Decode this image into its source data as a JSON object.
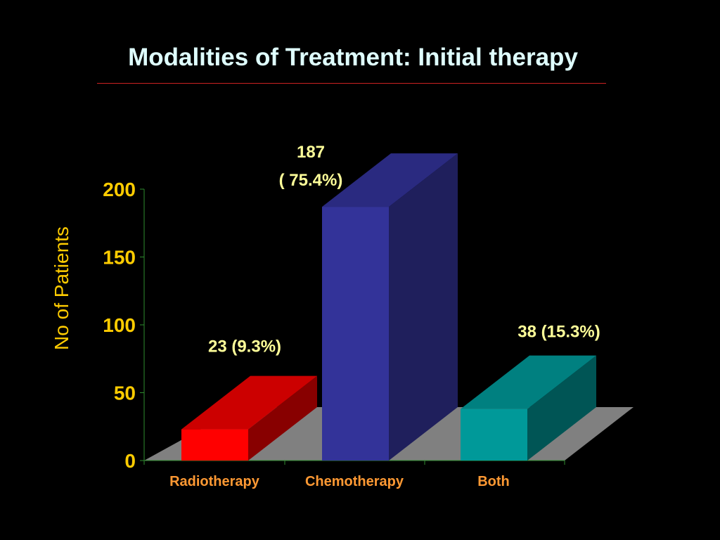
{
  "chart_data": {
    "type": "bar",
    "title": "Modalities of Treatment: Initial therapy",
    "xlabel": "",
    "ylabel": "No of Patients",
    "categories": [
      "Radiotherapy",
      "Chemotherapy",
      "Both"
    ],
    "values": [
      23,
      187,
      38
    ],
    "data_labels": [
      [
        "23 (9.3%)"
      ],
      [
        "187",
        "( 75.4%)"
      ],
      [
        "38 (15.3%)"
      ]
    ],
    "ylim": [
      0,
      200
    ],
    "yticks": [
      0,
      50,
      100,
      150,
      200
    ],
    "grid": false,
    "legend": "none",
    "three_d": true
  },
  "colors": {
    "background": "#000000",
    "title": "#dfffff",
    "title_rule": "#cc2222",
    "axis_text": "#ffcc00",
    "category_text": "#ff9933",
    "data_label": "#ffff99",
    "axis_line": "#2e8b2e",
    "floor": "#808080",
    "bars": [
      {
        "front": "#ff0000",
        "top": "#cc0000",
        "side": "#880000"
      },
      {
        "front": "#333399",
        "top": "#2a2a80",
        "side": "#1f1f5c"
      },
      {
        "front": "#009999",
        "top": "#008080",
        "side": "#005555"
      }
    ]
  }
}
